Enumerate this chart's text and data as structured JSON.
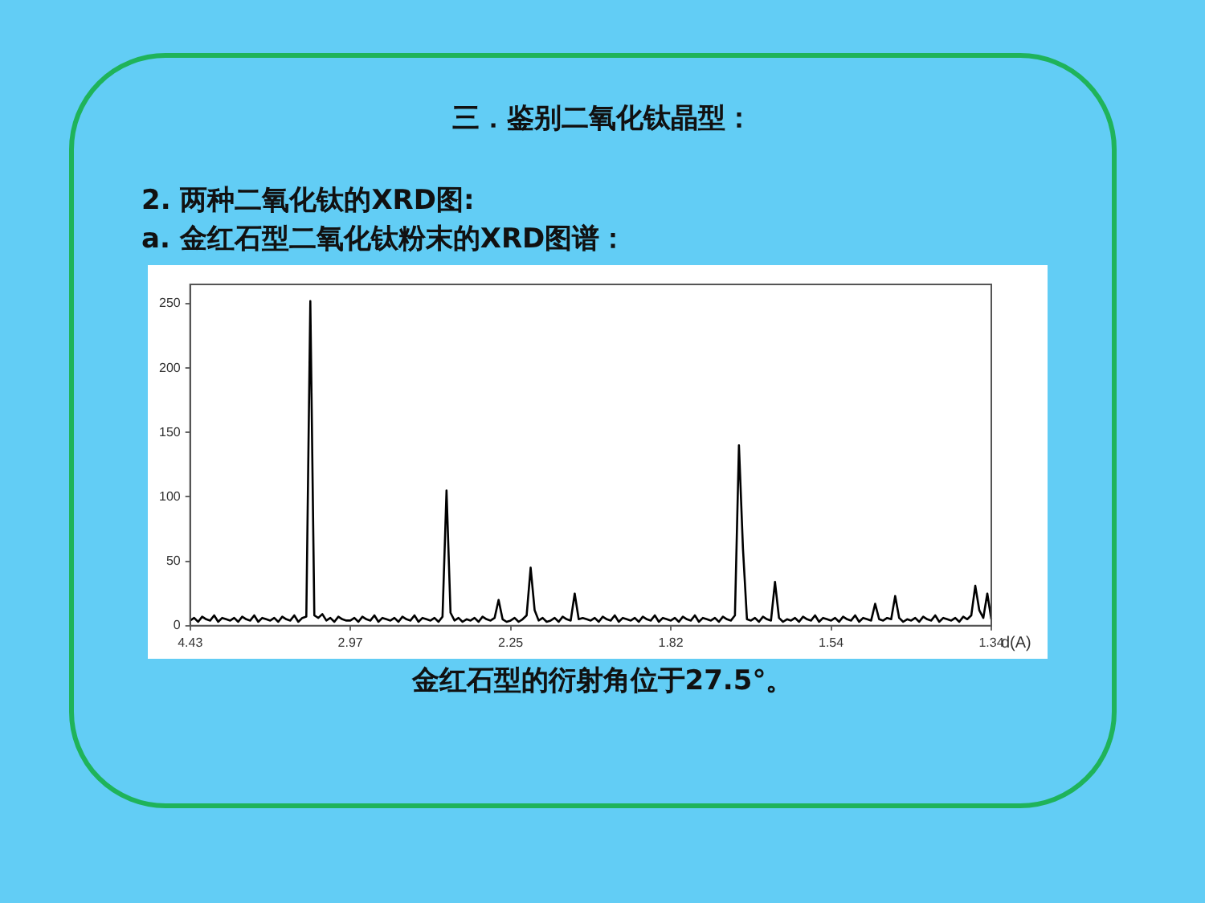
{
  "chart_data": {
    "type": "line",
    "title": "三．鉴别二氧化钛晶型：",
    "subtitle": "2. 两种二氧化钛的XRD图:",
    "annotations": [
      "a. 金红石型二氧化钛粉末的XRD图谱：",
      "金红石型的衍射角位于27.5°。"
    ],
    "xlabel": "d(A)",
    "categories": [
      "4.43",
      null,
      null,
      null,
      null,
      null,
      null,
      null,
      null,
      null,
      null,
      null,
      null,
      null,
      null,
      null,
      null,
      null,
      null,
      null,
      null,
      null,
      null,
      null,
      null,
      null,
      null,
      null,
      null,
      null,
      null,
      null,
      null,
      null,
      null,
      null,
      null,
      null,
      null,
      null,
      "2.97",
      null,
      null,
      null,
      null,
      null,
      null,
      null,
      null,
      null,
      null,
      null,
      null,
      null,
      null,
      null,
      null,
      null,
      null,
      null,
      null,
      null,
      null,
      null,
      null,
      null,
      null,
      null,
      null,
      null,
      null,
      null,
      null,
      null,
      null,
      null,
      null,
      null,
      null,
      null,
      "2.25",
      null,
      null,
      null,
      null,
      null,
      null,
      null,
      null,
      null,
      null,
      null,
      null,
      null,
      null,
      null,
      null,
      null,
      null,
      null,
      null,
      null,
      null,
      null,
      null,
      null,
      null,
      null,
      null,
      null,
      null,
      null,
      null,
      null,
      null,
      null,
      null,
      null,
      null,
      null,
      "1.82",
      null,
      null,
      null,
      null,
      null,
      null,
      null,
      null,
      null,
      null,
      null,
      null,
      null,
      null,
      null,
      null,
      null,
      null,
      null,
      null,
      null,
      null,
      null,
      null,
      null,
      null,
      null,
      null,
      null,
      null,
      null,
      null,
      null,
      null,
      null,
      null,
      null,
      null,
      null,
      "1.54",
      null,
      null,
      null,
      null,
      null,
      null,
      null,
      null,
      null,
      null,
      null,
      null,
      null,
      null,
      null,
      null,
      null,
      null,
      null,
      null,
      null,
      null,
      null,
      null,
      null,
      null,
      null,
      null,
      null,
      null,
      null,
      null,
      null,
      null,
      null,
      null,
      null,
      null,
      null,
      "1.34"
    ],
    "series": [
      {
        "color": "#000000",
        "values": [
          4,
          6,
          3,
          7,
          5,
          4,
          8,
          3,
          6,
          5,
          4,
          6,
          3,
          7,
          5,
          4,
          8,
          3,
          6,
          5,
          4,
          6,
          3,
          7,
          5,
          4,
          8,
          3,
          6,
          7,
          252,
          8,
          6,
          9,
          4,
          6,
          3,
          7,
          5,
          4,
          4,
          6,
          3,
          7,
          5,
          4,
          8,
          3,
          6,
          5,
          4,
          6,
          3,
          7,
          5,
          4,
          8,
          3,
          6,
          5,
          4,
          6,
          3,
          7,
          105,
          10,
          4,
          6,
          3,
          5,
          4,
          6,
          3,
          7,
          5,
          4,
          6,
          20,
          5,
          3,
          4,
          6,
          3,
          5,
          8,
          45,
          12,
          4,
          6,
          3,
          4,
          6,
          3,
          7,
          5,
          4,
          25,
          5,
          6,
          5,
          4,
          6,
          3,
          7,
          5,
          4,
          8,
          3,
          6,
          5,
          4,
          6,
          3,
          7,
          5,
          4,
          8,
          3,
          6,
          5,
          4,
          6,
          3,
          7,
          5,
          4,
          8,
          3,
          6,
          5,
          4,
          6,
          3,
          7,
          5,
          4,
          8,
          140,
          60,
          5,
          4,
          6,
          3,
          7,
          5,
          4,
          34,
          6,
          3,
          5,
          4,
          6,
          3,
          7,
          5,
          4,
          8,
          3,
          6,
          5,
          4,
          6,
          3,
          7,
          5,
          4,
          8,
          3,
          6,
          5,
          4,
          17,
          5,
          4,
          6,
          5,
          23,
          6,
          3,
          5,
          4,
          6,
          3,
          7,
          5,
          4,
          8,
          3,
          6,
          5,
          4,
          6,
          3,
          7,
          5,
          8,
          31,
          12,
          6,
          25,
          5
        ]
      }
    ],
    "ylim": [
      0,
      265
    ],
    "yticks": [
      0,
      50,
      100,
      150,
      200,
      250
    ],
    "grid": false,
    "legend": false,
    "marker": "none",
    "line_style": "solid"
  }
}
